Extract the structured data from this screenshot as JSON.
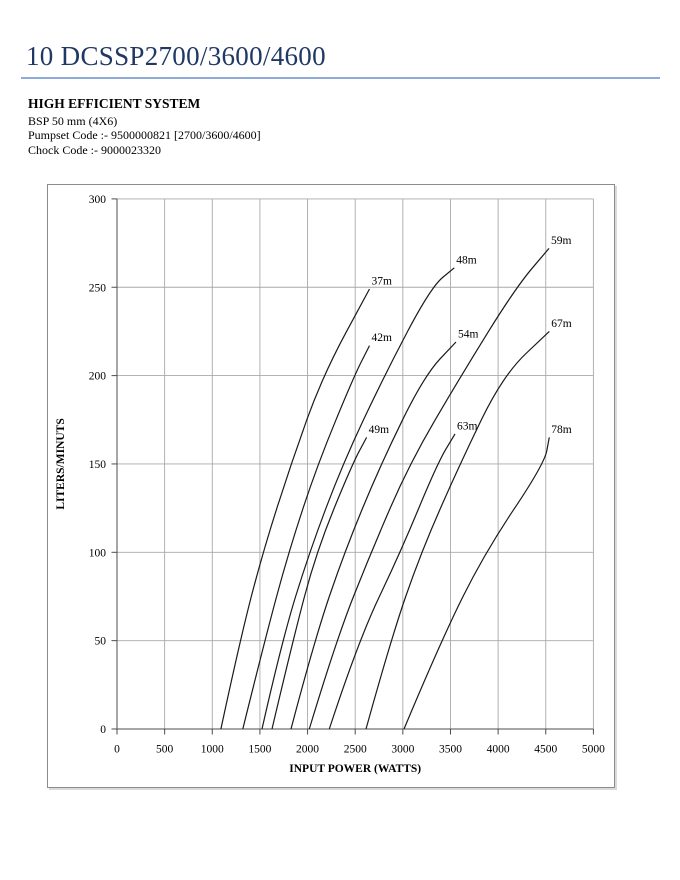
{
  "page": {
    "title": "10 DCSSP2700/3600/4600",
    "title_color": "#1F3864",
    "rule_color": "#8EAADC",
    "heading": "HIGH EFFICIENT SYSTEM",
    "spec_lines": [
      "BSP 50 mm (4X6)",
      "Pumpset Code :- 9500000821 [2700/3600/4600]",
      "Chock Code :-  9000023320"
    ]
  },
  "chart_data": {
    "type": "line",
    "title": "",
    "xlabel": "INPUT POWER (WATTS)",
    "ylabel": "LITERS/MINUTS",
    "xlim": [
      0,
      5000
    ],
    "ylim": [
      0,
      300
    ],
    "xticks": [
      0,
      500,
      1000,
      1500,
      2000,
      2500,
      3000,
      3500,
      4000,
      4500,
      5000
    ],
    "yticks": [
      0,
      50,
      100,
      150,
      200,
      250,
      300
    ],
    "grid": true,
    "legend_position": "labels-at-line-ends",
    "grid_color": "#a9a9a9",
    "axis_color": "#4d4d4d",
    "line_color": "#1a1a1a",
    "series": [
      {
        "name": "37m",
        "points": [
          [
            1090,
            0
          ],
          [
            1290,
            50
          ],
          [
            1530,
            100
          ],
          [
            1826,
            150
          ],
          [
            2159,
            200
          ],
          [
            2650,
            249
          ]
        ]
      },
      {
        "name": "42m",
        "points": [
          [
            1320,
            0
          ],
          [
            1550,
            50
          ],
          [
            1800,
            100
          ],
          [
            2106,
            150
          ],
          [
            2490,
            200
          ],
          [
            2650,
            217
          ]
        ]
      },
      {
        "name": "48m",
        "points": [
          [
            1522,
            0
          ],
          [
            1732,
            50
          ],
          [
            2018,
            100
          ],
          [
            2369,
            150
          ],
          [
            2805,
            200
          ],
          [
            3295,
            250
          ],
          [
            3540,
            261
          ]
        ]
      },
      {
        "name": "49m",
        "points": [
          [
            1627,
            0
          ],
          [
            1845,
            50
          ],
          [
            2090,
            100
          ],
          [
            2470,
            150
          ],
          [
            2620,
            165
          ]
        ]
      },
      {
        "name": "54m",
        "points": [
          [
            1826,
            0
          ],
          [
            2071,
            50
          ],
          [
            2386,
            100
          ],
          [
            2770,
            150
          ],
          [
            3225,
            200
          ],
          [
            3558,
            219
          ]
        ]
      },
      {
        "name": "59m",
        "points": [
          [
            2018,
            0
          ],
          [
            2299,
            50
          ],
          [
            2666,
            100
          ],
          [
            3068,
            150
          ],
          [
            3611,
            200
          ],
          [
            4188,
            250
          ],
          [
            4534,
            272
          ]
        ]
      },
      {
        "name": "63m",
        "points": [
          [
            2228,
            0
          ],
          [
            2533,
            50
          ],
          [
            2975,
            100
          ],
          [
            3360,
            150
          ],
          [
            3547,
            167
          ]
        ]
      },
      {
        "name": "67m",
        "points": [
          [
            2613,
            0
          ],
          [
            2870,
            50
          ],
          [
            3191,
            100
          ],
          [
            3600,
            150
          ],
          [
            4048,
            200
          ],
          [
            4537,
            225
          ]
        ]
      },
      {
        "name": "78m",
        "points": [
          [
            3012,
            0
          ],
          [
            3400,
            50
          ],
          [
            3862,
            100
          ],
          [
            4485,
            150
          ],
          [
            4537,
            165
          ]
        ]
      }
    ]
  }
}
